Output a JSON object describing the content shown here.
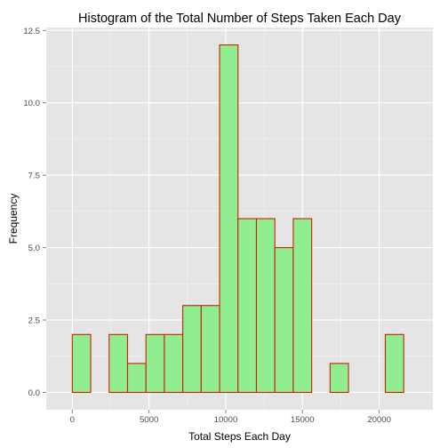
{
  "chart_data": {
    "type": "bar",
    "title": "Histogram of the Total Number of Steps Taken Each Day",
    "xlabel": "Total Steps Each Day",
    "ylabel": "Frequency",
    "xlim": [
      -1700,
      23500
    ],
    "ylim": [
      -0.6,
      12.6
    ],
    "x_ticks": [
      0,
      5000,
      10000,
      15000,
      20000
    ],
    "x_tick_labels": [
      "0",
      "5000",
      "10000",
      "15000",
      "20000"
    ],
    "y_ticks": [
      0,
      2.5,
      5,
      7.5,
      10,
      12.5
    ],
    "y_tick_labels": [
      "0.0",
      "2.5",
      "5.0",
      "7.5",
      "10.0",
      "12.5"
    ],
    "bin_width": 1200,
    "bins": [
      {
        "x0": -1200,
        "x1": 0,
        "count": 0
      },
      {
        "x0": 0,
        "x1": 1200,
        "count": 2
      },
      {
        "x0": 1200,
        "x1": 2400,
        "count": 0
      },
      {
        "x0": 2400,
        "x1": 3600,
        "count": 2
      },
      {
        "x0": 3600,
        "x1": 4800,
        "count": 1
      },
      {
        "x0": 4800,
        "x1": 6000,
        "count": 2
      },
      {
        "x0": 6000,
        "x1": 7200,
        "count": 2
      },
      {
        "x0": 7200,
        "x1": 8400,
        "count": 3
      },
      {
        "x0": 8400,
        "x1": 9600,
        "count": 3
      },
      {
        "x0": 9600,
        "x1": 10800,
        "count": 12
      },
      {
        "x0": 10800,
        "x1": 12000,
        "count": 6
      },
      {
        "x0": 12000,
        "x1": 13200,
        "count": 6
      },
      {
        "x0": 13200,
        "x1": 14400,
        "count": 5
      },
      {
        "x0": 14400,
        "x1": 15600,
        "count": 6
      },
      {
        "x0": 15600,
        "x1": 16800,
        "count": 0
      },
      {
        "x0": 16800,
        "x1": 18000,
        "count": 1
      },
      {
        "x0": 18000,
        "x1": 19200,
        "count": 0
      },
      {
        "x0": 19200,
        "x1": 20400,
        "count": 0
      },
      {
        "x0": 20400,
        "x1": 21600,
        "count": 2
      },
      {
        "x0": 21600,
        "x1": 22800,
        "count": 0
      }
    ],
    "grid": true,
    "colors": {
      "panel_background": "#e5e5e5",
      "grid_major": "#ffffff",
      "grid_minor": "#f2f2f2",
      "bar_fill": "#90ee90",
      "bar_outline": "#cc2200",
      "tick_label": "#4d4d4d",
      "tick_mark": "#7f7f7f"
    }
  }
}
